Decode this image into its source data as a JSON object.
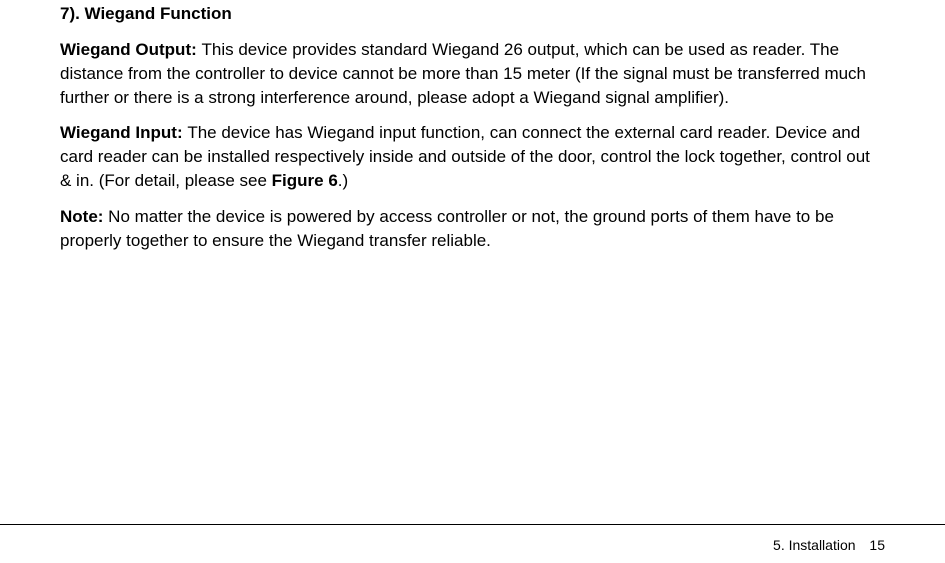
{
  "typography": {
    "body_font_family": "Segoe UI, Myriad Pro, Helvetica Neue, Arial, sans-serif",
    "body_font_size_pt": 12.5,
    "heading_font_size_pt": 12.5,
    "heading_font_weight": 700,
    "body_font_weight": 400,
    "line_height": 1.4,
    "text_color": "#000000",
    "background_color": "#ffffff"
  },
  "section": {
    "heading": "7). Wiegand Function",
    "p1_label": "Wiegand Output: ",
    "p1_text": "This device provides standard Wiegand 26 output, which can be used as reader. The distance from the controller to device cannot be more than 15 meter (If the signal must be transferred much further or there is a strong interference around, please adopt a Wiegand signal amplifier).",
    "p2_label": "Wiegand Input: ",
    "p2_text_a": "The device has Wiegand input function, can connect the external card reader. Device and card reader can be installed respectively inside and outside of the door, control the lock together, control out & in. (For detail, please see ",
    "p2_fig": "Figure 6",
    "p2_text_b": ".)",
    "p3_label": "Note: ",
    "p3_text": "No matter the device is powered by access controller or not, the ground ports of them have to be properly together to ensure the Wiegand transfer reliable."
  },
  "footer": {
    "section_label": "5.  Installation",
    "page_number": "15",
    "rule_color": "#000000"
  }
}
